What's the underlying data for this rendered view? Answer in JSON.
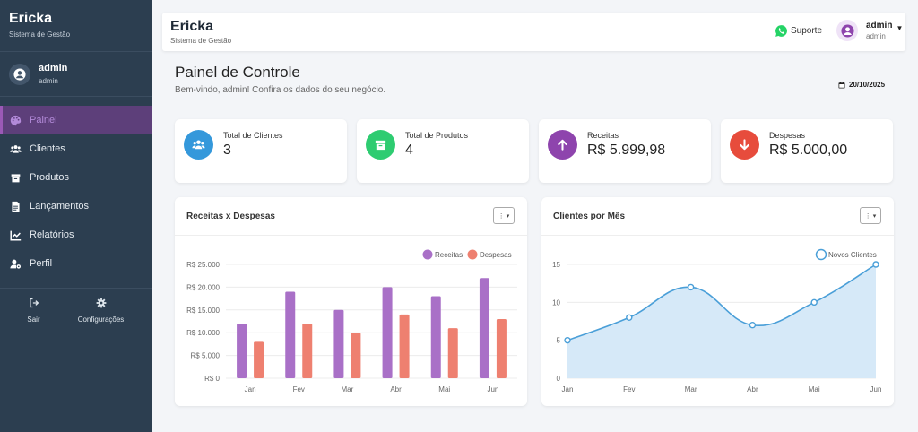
{
  "sidebar": {
    "brand_title": "Ericka",
    "brand_subtitle": "Sistema de Gestão",
    "user_name": "admin",
    "user_role": "admin",
    "nav": [
      {
        "label": "Painel",
        "icon": "palette-icon",
        "active": true
      },
      {
        "label": "Clientes",
        "icon": "users-icon",
        "active": false
      },
      {
        "label": "Produtos",
        "icon": "box-icon",
        "active": false
      },
      {
        "label": "Lançamentos",
        "icon": "file-invoice-icon",
        "active": false
      },
      {
        "label": "Relatórios",
        "icon": "chart-line-icon",
        "active": false
      },
      {
        "label": "Perfil",
        "icon": "user-cog-icon",
        "active": false
      }
    ],
    "footer": [
      {
        "label": "Sair",
        "icon": "logout-icon"
      },
      {
        "label": "Configurações",
        "icon": "gear-icon"
      }
    ]
  },
  "topbar": {
    "title": "Ericka",
    "subtitle": "Sistema de Gestão",
    "support_label": "Suporte",
    "user_name": "admin",
    "user_role": "admin"
  },
  "page": {
    "title": "Painel de Controle",
    "subtitle": "Bem-vindo, admin! Confira os dados do seu negócio.",
    "date": "20/10/2025"
  },
  "stats": [
    {
      "label": "Total de Clientes",
      "value": "3",
      "color": "#3498db",
      "icon": "users-icon"
    },
    {
      "label": "Total de Produtos",
      "value": "4",
      "color": "#2ecc71",
      "icon": "box-icon"
    },
    {
      "label": "Receitas",
      "value": "R$ 5.999,98",
      "color": "#8e44ad",
      "icon": "arrow-up-icon"
    },
    {
      "label": "Despesas",
      "value": "R$ 5.000,00",
      "color": "#e74c3c",
      "icon": "arrow-down-icon"
    }
  ],
  "charts": {
    "bar_title": "Receitas x Despesas",
    "line_title": "Clientes por Mês"
  },
  "chart_data": [
    {
      "type": "bar",
      "title": "Receitas x Despesas",
      "categories": [
        "Jan",
        "Fev",
        "Mar",
        "Abr",
        "Mai",
        "Jun"
      ],
      "series": [
        {
          "name": "Receitas",
          "color": "#a970c7",
          "values": [
            12000,
            19000,
            15000,
            20000,
            18000,
            22000
          ]
        },
        {
          "name": "Despesas",
          "color": "#ee8070",
          "values": [
            8000,
            12000,
            10000,
            14000,
            11000,
            13000
          ]
        }
      ],
      "ylim": [
        0,
        25000
      ],
      "yticks": [
        "R$ 0",
        "R$ 5.000",
        "R$ 10.000",
        "R$ 15.000",
        "R$ 20.000",
        "R$ 25.000"
      ],
      "legend": "top-right",
      "grid": true
    },
    {
      "type": "area",
      "title": "Clientes por Mês",
      "categories": [
        "Jan",
        "Fev",
        "Mar",
        "Abr",
        "Mai",
        "Jun"
      ],
      "series": [
        {
          "name": "Novos Clientes",
          "color": "#4a9fd8",
          "values": [
            5,
            8,
            12,
            7,
            10,
            15
          ]
        }
      ],
      "ylim": [
        0,
        15
      ],
      "yticks": [
        "0",
        "5",
        "10",
        "15"
      ],
      "legend": "top-right",
      "grid": true
    }
  ]
}
